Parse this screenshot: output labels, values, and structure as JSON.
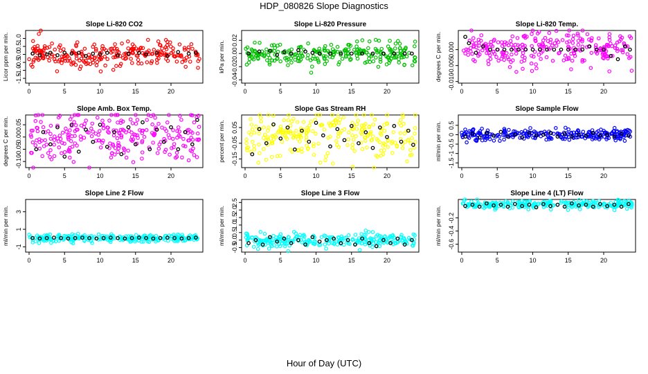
{
  "title": "HDP_080826  Slope Diagnostics",
  "xlabel": "Hour of Day (UTC)",
  "chart_data": [
    {
      "type": "scatter",
      "title": "Slope Li-820 CO2",
      "ylabel": "Licor ppm per min.",
      "xlim": [
        0,
        24
      ],
      "xticks": [
        0,
        5,
        10,
        15,
        20
      ],
      "ylim": [
        -1.8,
        1.5
      ],
      "yticks": [
        -1.5,
        -1.0,
        -0.5,
        0.0,
        0.5,
        1.0
      ],
      "ytick_labels": [
        "-1.5",
        "-1.0",
        "-0.5",
        "0.0",
        "0.5",
        "1.0"
      ],
      "color": "#ff0000",
      "spread": 0.42,
      "black_spread": 0.1,
      "seed": 11,
      "black_points": [
        [
          0.5,
          0.05
        ],
        [
          1.5,
          -0.05
        ],
        [
          2.5,
          0.0
        ],
        [
          3.0,
          0.1
        ],
        [
          4.0,
          -0.05
        ],
        [
          5.0,
          0.1
        ],
        [
          6.0,
          0.05
        ],
        [
          7.0,
          0.1
        ],
        [
          8.0,
          -0.1
        ],
        [
          9.0,
          0.05
        ],
        [
          10.0,
          0.0
        ],
        [
          11.0,
          0.1
        ],
        [
          12.5,
          -0.05
        ],
        [
          14.0,
          0.05
        ],
        [
          15.5,
          0.1
        ],
        [
          16.5,
          0.0
        ],
        [
          18.0,
          0.1
        ],
        [
          19.5,
          -0.1
        ],
        [
          21.0,
          0.15
        ],
        [
          22.5,
          0.05
        ],
        [
          23.5,
          0.1
        ]
      ]
    },
    {
      "type": "scatter",
      "title": "Slope Li-820 Pressure",
      "ylabel": "kPa per min.",
      "xlim": [
        0,
        24
      ],
      "xticks": [
        0,
        5,
        10,
        15,
        20
      ],
      "ylim": [
        -0.045,
        0.035
      ],
      "yticks": [
        -0.04,
        -0.02,
        0.0,
        0.02
      ],
      "ytick_labels": [
        "-0.04",
        "-0.02",
        "0.00",
        "0.02"
      ],
      "color": "#00c000",
      "spread": 0.008,
      "black_spread": 0.002,
      "seed": 23,
      "black_points": [
        [
          0.5,
          0.0
        ],
        [
          2.0,
          0.003
        ],
        [
          3.5,
          0.004
        ],
        [
          4.5,
          -0.002
        ],
        [
          5.5,
          0.002
        ],
        [
          6.5,
          0.0
        ],
        [
          7.5,
          0.005
        ],
        [
          8.5,
          0.003
        ],
        [
          9.5,
          0.001
        ],
        [
          10.5,
          0.0
        ],
        [
          12.0,
          0.0
        ],
        [
          13.5,
          0.0
        ],
        [
          15.0,
          0.0
        ],
        [
          16.5,
          0.0
        ],
        [
          18.0,
          0.0
        ],
        [
          19.5,
          0.0
        ],
        [
          21.0,
          0.0
        ],
        [
          22.5,
          0.0
        ],
        [
          23.5,
          0.0
        ]
      ]
    },
    {
      "type": "scatter",
      "title": "Slope Li-820 Temp.",
      "ylabel": "degrees C per min.",
      "xlim": [
        0,
        24
      ],
      "xticks": [
        0,
        5,
        10,
        15,
        20
      ],
      "ylim": [
        -0.0105,
        0.006
      ],
      "yticks": [
        -0.01,
        -0.005,
        0.0
      ],
      "ytick_labels": [
        "-0.010",
        "-0.005",
        "0.000"
      ],
      "color": "#ff00ff",
      "spread": 0.0028,
      "black_spread": 0.0006,
      "seed": 37,
      "black_points": [
        [
          0.5,
          0.004
        ],
        [
          1.0,
          0.002
        ],
        [
          2.0,
          -0.001
        ],
        [
          3.0,
          0.001
        ],
        [
          4.0,
          0.0
        ],
        [
          5.0,
          0.0
        ],
        [
          6.0,
          0.0
        ],
        [
          7.0,
          0.0
        ],
        [
          8.0,
          0.0
        ],
        [
          9.0,
          0.0
        ],
        [
          10.0,
          0.0
        ],
        [
          11.0,
          0.0
        ],
        [
          12.0,
          0.0
        ],
        [
          13.0,
          0.0
        ],
        [
          14.0,
          0.0
        ],
        [
          15.0,
          0.0
        ],
        [
          16.0,
          0.0
        ],
        [
          17.0,
          0.0
        ],
        [
          18.0,
          0.001
        ],
        [
          19.0,
          0.0
        ],
        [
          20.0,
          0.0
        ],
        [
          21.0,
          -0.002
        ],
        [
          22.0,
          -0.003
        ],
        [
          23.0,
          0.001
        ],
        [
          23.7,
          0.0
        ]
      ]
    },
    {
      "type": "scatter",
      "title": "Slope Amb. Box Temp.",
      "ylabel": "degrees C per min.",
      "xlim": [
        0,
        24
      ],
      "xticks": [
        0,
        5,
        10,
        15,
        20
      ],
      "ylim": [
        -0.125,
        0.09
      ],
      "yticks": [
        -0.1,
        -0.05,
        0.0,
        0.05
      ],
      "ytick_labels": [
        "-0.10",
        "-0.05",
        "0.00",
        "0.05"
      ],
      "color": "#ff00ff",
      "spread": 0.055,
      "black_spread": 0.04,
      "seed": 41,
      "black_points": [
        [
          1.0,
          -0.05
        ],
        [
          2.0,
          0.02
        ],
        [
          3.0,
          -0.03
        ],
        [
          4.0,
          0.04
        ],
        [
          5.0,
          -0.08
        ],
        [
          6.0,
          0.05
        ],
        [
          7.0,
          -0.06
        ],
        [
          8.0,
          0.03
        ],
        [
          9.0,
          -0.02
        ],
        [
          10.0,
          0.05
        ],
        [
          11.0,
          -0.04
        ],
        [
          12.0,
          0.02
        ],
        [
          13.0,
          -0.07
        ],
        [
          14.0,
          0.04
        ],
        [
          15.0,
          -0.03
        ],
        [
          16.0,
          0.06
        ],
        [
          17.0,
          -0.05
        ],
        [
          18.0,
          0.03
        ],
        [
          19.0,
          -0.02
        ],
        [
          20.0,
          0.04
        ],
        [
          21.0,
          -0.05
        ],
        [
          22.0,
          0.02
        ],
        [
          23.0,
          -0.03
        ],
        [
          23.7,
          0.07
        ]
      ]
    },
    {
      "type": "scatter",
      "title": "Slope Gas Stream RH",
      "ylabel": "percent per min.",
      "xlim": [
        0,
        24
      ],
      "xticks": [
        0,
        5,
        10,
        15,
        20
      ],
      "ylim": [
        -0.205,
        0.13
      ],
      "yticks": [
        -0.15,
        -0.05,
        0.05
      ],
      "ytick_labels": [
        "-0.15",
        "-0.05",
        "0.05"
      ],
      "color": "#ffff00",
      "spread": 0.075,
      "black_spread": 0.06,
      "seed": 53,
      "black_points": [
        [
          1.0,
          -0.12
        ],
        [
          2.0,
          0.04
        ],
        [
          3.0,
          -0.05
        ],
        [
          4.0,
          0.07
        ],
        [
          5.0,
          -0.02
        ],
        [
          6.0,
          0.05
        ],
        [
          7.0,
          -0.09
        ],
        [
          8.0,
          0.03
        ],
        [
          9.0,
          -0.04
        ],
        [
          10.0,
          0.08
        ],
        [
          11.0,
          0.0
        ],
        [
          12.0,
          -0.07
        ],
        [
          13.0,
          0.04
        ],
        [
          14.0,
          -0.03
        ],
        [
          15.0,
          0.06
        ],
        [
          16.0,
          -0.05
        ],
        [
          17.0,
          0.02
        ],
        [
          18.0,
          -0.08
        ],
        [
          19.0,
          0.05
        ],
        [
          20.0,
          -0.01
        ],
        [
          21.0,
          0.06
        ],
        [
          22.0,
          -0.04
        ],
        [
          23.0,
          0.03
        ],
        [
          23.7,
          -0.06
        ]
      ]
    },
    {
      "type": "scatter",
      "title": "Slope Sample Flow",
      "ylabel": "ml/min per min.",
      "xlim": [
        0,
        24
      ],
      "xticks": [
        0,
        5,
        10,
        15,
        20
      ],
      "ylim": [
        -1.75,
        1.05
      ],
      "yticks": [
        -1.5,
        -1.0,
        -0.5,
        0.0,
        0.5
      ],
      "ytick_labels": [
        "-1.5",
        "-1",
        "-0.5",
        "0",
        "0.5"
      ],
      "color": "#0000ff",
      "spread": 0.14,
      "black_spread": 0.12,
      "seed": 67,
      "black_points": [
        [
          0.5,
          -0.1
        ],
        [
          1.5,
          0.05
        ],
        [
          2.5,
          -0.15
        ],
        [
          3.5,
          0.1
        ],
        [
          4.5,
          -0.05
        ],
        [
          5.5,
          0.15
        ],
        [
          6.5,
          -0.1
        ],
        [
          7.5,
          0.0
        ],
        [
          8.5,
          -0.15
        ],
        [
          9.5,
          0.1
        ],
        [
          10.5,
          -0.05
        ],
        [
          11.5,
          0.0
        ],
        [
          12.5,
          0.1
        ],
        [
          13.5,
          -0.1
        ],
        [
          14.5,
          0.05
        ],
        [
          15.5,
          -0.1
        ],
        [
          16.5,
          0.0
        ],
        [
          17.5,
          -0.05
        ],
        [
          18.5,
          0.1
        ],
        [
          19.5,
          -0.05
        ],
        [
          20.5,
          0.0
        ],
        [
          21.5,
          -0.1
        ],
        [
          22.5,
          0.05
        ],
        [
          23.5,
          -0.05
        ]
      ]
    },
    {
      "type": "scatter",
      "title": "Slope Line 2 Flow",
      "ylabel": "ml/min per min.",
      "xlim": [
        0,
        24
      ],
      "xticks": [
        0,
        5,
        10,
        15,
        20
      ],
      "ylim": [
        -1.6,
        4.4
      ],
      "yticks": [
        -1,
        1,
        3
      ],
      "ytick_labels": [
        "-1",
        "1",
        "3"
      ],
      "color": "#00ffff",
      "spread": 0.22,
      "black_spread": 0.05,
      "seed": 71,
      "black_points": [
        [
          0.5,
          0.0
        ],
        [
          1.5,
          -0.05
        ],
        [
          2.5,
          0.0
        ],
        [
          3.5,
          0.05
        ],
        [
          4.5,
          0.0
        ],
        [
          5.5,
          -0.05
        ],
        [
          6.5,
          0.0
        ],
        [
          7.5,
          0.05
        ],
        [
          8.5,
          0.0
        ],
        [
          9.5,
          -0.05
        ],
        [
          10.5,
          0.0
        ],
        [
          11.5,
          0.05
        ],
        [
          12.5,
          0.0
        ],
        [
          13.5,
          -0.05
        ],
        [
          14.5,
          0.0
        ],
        [
          15.5,
          0.05
        ],
        [
          16.5,
          0.0
        ],
        [
          17.5,
          -0.05
        ],
        [
          18.5,
          0.0
        ],
        [
          19.5,
          0.05
        ],
        [
          20.5,
          0.0
        ],
        [
          21.5,
          -0.05
        ],
        [
          22.5,
          0.0
        ],
        [
          23.5,
          0.05
        ]
      ]
    },
    {
      "type": "scatter",
      "title": "Slope Line 3 Flow",
      "ylabel": "ml/min per min.",
      "xlim": [
        0,
        24
      ],
      "xticks": [
        0,
        5,
        10,
        15,
        20
      ],
      "ylim": [
        -0.8,
        2.7
      ],
      "yticks": [
        -0.5,
        0.0,
        0.5,
        1.0,
        1.5,
        2.0,
        2.5
      ],
      "ytick_labels": [
        "-0.5",
        "0.0",
        "0.5",
        "1.0",
        "1.5",
        "2.0",
        "2.5"
      ],
      "color": "#00ffff",
      "spread": 0.22,
      "black_spread": 0.2,
      "seed": 83,
      "black_points": [
        [
          0.5,
          -0.2
        ],
        [
          1.5,
          0.0
        ],
        [
          2.5,
          -0.3
        ],
        [
          3.5,
          0.2
        ],
        [
          4.5,
          -0.1
        ],
        [
          5.5,
          0.1
        ],
        [
          6.5,
          -0.2
        ],
        [
          7.5,
          0.0
        ],
        [
          8.5,
          -0.3
        ],
        [
          9.5,
          0.2
        ],
        [
          10.5,
          -0.1
        ],
        [
          11.5,
          0.0
        ],
        [
          12.5,
          0.1
        ],
        [
          13.5,
          -0.2
        ],
        [
          14.5,
          0.0
        ],
        [
          15.5,
          -0.3
        ],
        [
          16.5,
          0.1
        ],
        [
          17.5,
          -0.2
        ],
        [
          18.5,
          -0.4
        ],
        [
          19.5,
          0.0
        ],
        [
          20.5,
          -0.2
        ],
        [
          21.5,
          0.1
        ],
        [
          22.5,
          -0.3
        ],
        [
          23.5,
          0.0
        ]
      ]
    },
    {
      "type": "scatter",
      "title": "Slope Line 4 (LT) Flow",
      "ylabel": "ml/min per min.",
      "xlim": [
        0,
        24
      ],
      "xticks": [
        0,
        5,
        10,
        15,
        20
      ],
      "ylim": [
        -0.72,
        0.08
      ],
      "yticks": [
        -0.6,
        -0.4,
        -0.2
      ],
      "ytick_labels": [
        "-0.6",
        "-0.4",
        "-0.2"
      ],
      "color": "#00ffff",
      "spread": 0.035,
      "black_spread": 0.03,
      "seed": 97,
      "black_points": [
        [
          0.5,
          -0.02
        ],
        [
          1.5,
          0.0
        ],
        [
          2.5,
          -0.03
        ],
        [
          3.5,
          0.02
        ],
        [
          4.5,
          -0.01
        ],
        [
          5.5,
          0.0
        ],
        [
          6.5,
          -0.03
        ],
        [
          7.5,
          0.01
        ],
        [
          8.5,
          -0.02
        ],
        [
          9.5,
          0.0
        ],
        [
          10.5,
          -0.04
        ],
        [
          11.5,
          0.01
        ],
        [
          12.5,
          -0.02
        ],
        [
          13.5,
          0.0
        ],
        [
          14.5,
          -0.03
        ],
        [
          15.5,
          0.02
        ],
        [
          16.5,
          -0.01
        ],
        [
          17.5,
          0.0
        ],
        [
          18.5,
          -0.03
        ],
        [
          19.5,
          0.01
        ],
        [
          20.5,
          -0.02
        ],
        [
          21.5,
          0.0
        ],
        [
          22.5,
          -0.03
        ],
        [
          23.5,
          0.01
        ]
      ]
    }
  ]
}
